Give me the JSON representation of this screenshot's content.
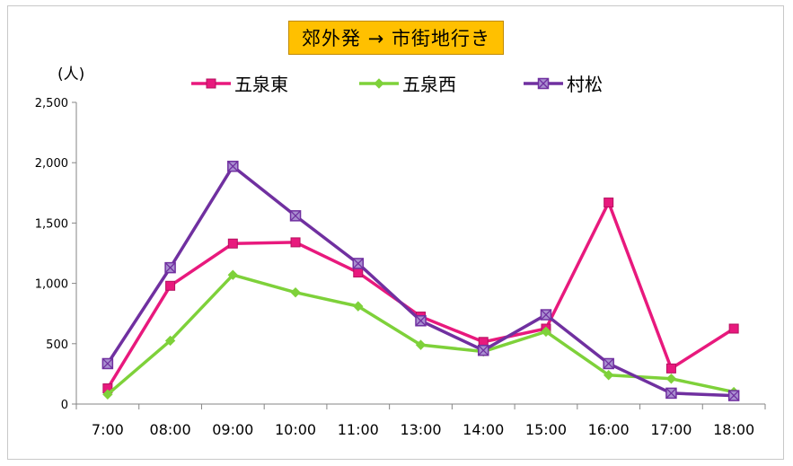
{
  "chart_data": {
    "type": "line",
    "title": "郊外発 → 市街地行き",
    "ylabel": "(人)",
    "xlabel": "",
    "categories": [
      "7:00",
      "08:00",
      "09:00",
      "10:00",
      "11:00",
      "13:00",
      "14:00",
      "15:00",
      "16:00",
      "17:00",
      "18:00"
    ],
    "ylim": [
      0,
      2500
    ],
    "yticks": [
      0,
      500,
      1000,
      1500,
      2000,
      2500
    ],
    "ytick_labels": [
      "0",
      "500",
      "1,000",
      "1,500",
      "2,000",
      "2,500"
    ],
    "grid": false,
    "legend_position": "top",
    "series": [
      {
        "name": "五泉東",
        "color": "#e8197d",
        "marker": "square",
        "values": [
          130,
          980,
          1330,
          1340,
          1090,
          725,
          515,
          625,
          1670,
          295,
          625
        ]
      },
      {
        "name": "五泉西",
        "color": "#7ed13a",
        "marker": "diamond",
        "values": [
          80,
          525,
          1070,
          925,
          810,
          490,
          435,
          600,
          240,
          210,
          100
        ]
      },
      {
        "name": "村松",
        "color": "#7030a0",
        "marker": "square-x",
        "values": [
          335,
          1130,
          1970,
          1560,
          1165,
          690,
          445,
          740,
          335,
          90,
          70
        ]
      }
    ]
  }
}
